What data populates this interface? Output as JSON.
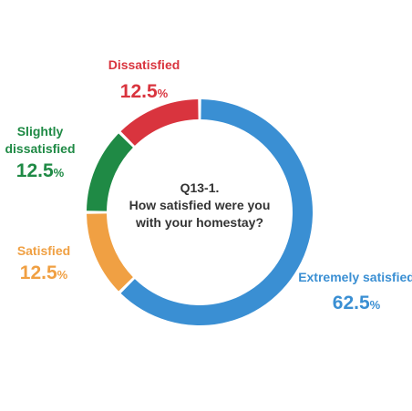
{
  "chart_data": {
    "type": "pie",
    "variant": "donut",
    "title": "Q13-1. How satisfied were you with your homestay?",
    "title_lines": [
      "Q13-1.",
      "How satisfied were you",
      "with your homestay?"
    ],
    "unit": "%",
    "series": [
      {
        "name": "Responses",
        "slices": [
          {
            "label": "Extremely satisfied",
            "label_lines": [
              "Extremely satisfied"
            ],
            "value": 62.5,
            "value_text": "62.5",
            "color": "#3a8fd3"
          },
          {
            "label": "Satisfied",
            "label_lines": [
              "Satisfied"
            ],
            "value": 12.5,
            "value_text": "12.5",
            "color": "#f0a043"
          },
          {
            "label": "Slightly dissatisfied",
            "label_lines": [
              "Slightly",
              "dissatisfied"
            ],
            "value": 12.5,
            "value_text": "12.5",
            "color": "#1f8a45"
          },
          {
            "label": "Dissatisfied",
            "label_lines": [
              "Dissatisfied"
            ],
            "value": 12.5,
            "value_text": "12.5",
            "color": "#d9343e"
          }
        ]
      }
    ],
    "start": "top",
    "direction": "clockwise",
    "legend": "none",
    "grid": false
  }
}
